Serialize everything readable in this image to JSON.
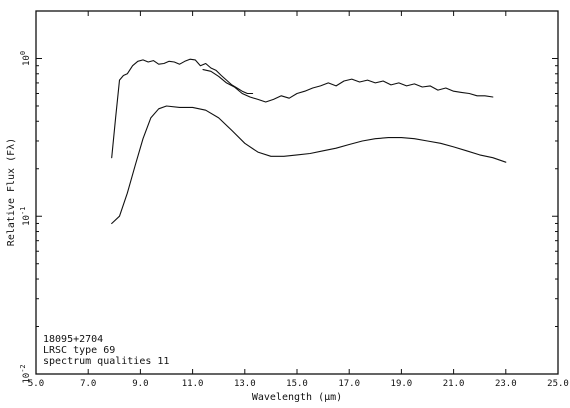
{
  "chart_data": {
    "type": "line",
    "title": "",
    "xlabel": "Wavelength (μm)",
    "ylabel": "Relative Flux (Fλ)",
    "xlim": [
      5.0,
      25.0
    ],
    "ylim": [
      0.01,
      2.0
    ],
    "yscale": "log",
    "grid": false,
    "x_ticks": [
      5.0,
      7.0,
      9.0,
      11.0,
      13.0,
      15.0,
      17.0,
      19.0,
      21.0,
      23.0,
      25.0
    ],
    "x_tick_labels": [
      "5.0",
      "7.0",
      "9.0",
      "11.0",
      "13.0",
      "15.0",
      "17.0",
      "19.0",
      "21.0",
      "23.0",
      "25.0"
    ],
    "y_ticks": [
      {
        "value": 1.0,
        "base": "10",
        "exp": "0"
      },
      {
        "value": 0.1,
        "base": "10",
        "exp": "-1"
      },
      {
        "value": 0.01,
        "base": "10",
        "exp": "-2"
      }
    ],
    "annotation_lines": [
      "18095+2704",
      "LRSC type 69",
      "spectrum qualities 11"
    ],
    "series": [
      {
        "x": [
          7.9,
          8.05,
          8.2,
          8.35,
          8.5,
          8.7,
          8.9,
          9.1,
          9.3,
          9.5,
          9.7,
          9.9,
          10.1,
          10.3,
          10.5,
          10.7,
          10.9,
          11.1,
          11.3,
          11.5,
          11.7,
          11.9,
          12.1,
          12.3,
          12.5,
          12.7,
          12.9,
          13.1,
          13.3
        ],
        "y": [
          0.235,
          0.42,
          0.73,
          0.78,
          0.8,
          0.9,
          0.96,
          0.98,
          0.95,
          0.97,
          0.92,
          0.93,
          0.96,
          0.95,
          0.92,
          0.96,
          0.99,
          0.98,
          0.9,
          0.93,
          0.87,
          0.84,
          0.78,
          0.73,
          0.68,
          0.65,
          0.62,
          0.6,
          0.6
        ]
      },
      {
        "x": [
          11.4,
          11.7,
          12.0,
          12.3,
          12.6,
          12.9,
          13.2,
          13.5,
          13.8,
          14.1,
          14.4,
          14.7,
          15.0,
          15.3,
          15.6,
          15.9,
          16.2,
          16.5,
          16.8,
          17.1,
          17.4,
          17.7,
          18.0,
          18.3,
          18.6,
          18.9,
          19.2,
          19.5,
          19.8,
          20.1,
          20.4,
          20.7,
          21.0,
          21.3,
          21.6,
          21.9,
          22.2,
          22.5
        ],
        "y": [
          0.85,
          0.83,
          0.77,
          0.7,
          0.66,
          0.6,
          0.57,
          0.55,
          0.53,
          0.55,
          0.58,
          0.56,
          0.6,
          0.62,
          0.65,
          0.67,
          0.7,
          0.67,
          0.72,
          0.74,
          0.71,
          0.73,
          0.7,
          0.72,
          0.68,
          0.7,
          0.67,
          0.69,
          0.66,
          0.67,
          0.63,
          0.65,
          0.62,
          0.61,
          0.6,
          0.58,
          0.58,
          0.57
        ]
      },
      {
        "x": [
          7.9,
          8.2,
          8.5,
          8.8,
          9.1,
          9.4,
          9.7,
          10.0,
          10.5,
          11.0,
          11.5,
          12.0,
          12.5,
          13.0,
          13.5,
          14.0,
          14.5,
          15.0,
          15.5,
          16.0,
          16.5,
          17.0,
          17.5,
          18.0,
          18.5,
          19.0,
          19.5,
          20.0,
          20.5,
          21.0,
          21.5,
          22.0,
          22.5,
          23.0
        ],
        "y": [
          0.09,
          0.1,
          0.14,
          0.21,
          0.31,
          0.42,
          0.48,
          0.5,
          0.49,
          0.49,
          0.47,
          0.42,
          0.35,
          0.29,
          0.255,
          0.24,
          0.24,
          0.245,
          0.25,
          0.26,
          0.27,
          0.285,
          0.3,
          0.31,
          0.315,
          0.315,
          0.31,
          0.3,
          0.29,
          0.275,
          0.26,
          0.245,
          0.235,
          0.22
        ]
      }
    ]
  }
}
